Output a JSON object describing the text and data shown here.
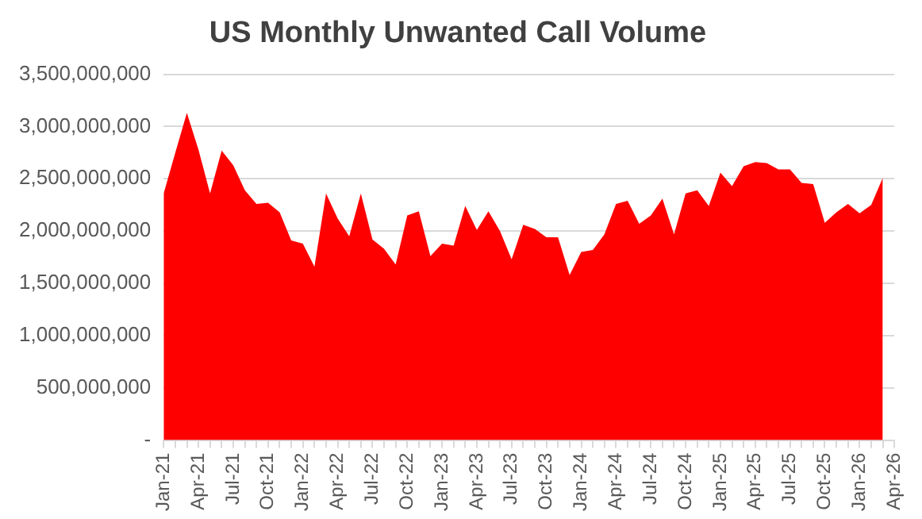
{
  "chart_data": {
    "type": "area",
    "title": "US Monthly Unwanted Call Volume",
    "categories": [
      "Jan-21",
      null,
      null,
      "Apr-21",
      null,
      null,
      "Jul-21",
      null,
      null,
      "Oct-21",
      null,
      null,
      "Jan-22",
      null,
      null,
      "Apr-22",
      null,
      null,
      "Jul-22",
      null,
      null,
      "Oct-22",
      null,
      null,
      "Jan-23",
      null,
      null,
      "Apr-23",
      null,
      null,
      "Jul-23",
      null,
      null,
      "Oct-23",
      null,
      null,
      "Jan-24",
      null,
      null,
      "Apr-24",
      null,
      null,
      "Jul-24",
      null,
      null,
      "Oct-24",
      null,
      null,
      "Jan-25",
      null,
      null,
      "Apr-25",
      null,
      null,
      "Jul-25",
      null,
      null,
      "Oct-25",
      null,
      null,
      "Jan-26",
      null,
      null,
      "Apr-26"
    ],
    "series": [
      {
        "color": "#ff0000",
        "values": [
          2360000000,
          2750000000,
          3130000000,
          2780000000,
          2360000000,
          2770000000,
          2630000000,
          2390000000,
          2260000000,
          2270000000,
          2180000000,
          1910000000,
          1880000000,
          1660000000,
          2360000000,
          2120000000,
          1950000000,
          2360000000,
          1920000000,
          1830000000,
          1680000000,
          2150000000,
          2190000000,
          1760000000,
          1880000000,
          1860000000,
          2240000000,
          2010000000,
          2190000000,
          2000000000,
          1730000000,
          2060000000,
          2020000000,
          1940000000,
          1940000000,
          1580000000,
          1800000000,
          1820000000,
          1970000000,
          2260000000,
          2290000000,
          2070000000,
          2150000000,
          2310000000,
          1970000000,
          2360000000,
          2390000000,
          2240000000,
          2560000000,
          2430000000,
          2620000000,
          2660000000,
          2650000000,
          2590000000,
          2590000000,
          2460000000,
          2450000000,
          2080000000,
          2180000000,
          2260000000,
          2170000000,
          2250000000,
          2510000000,
          null
        ]
      }
    ],
    "ylim": [
      0,
      3500000000
    ],
    "yticks": [
      {
        "value": 0,
        "label": "-"
      },
      {
        "value": 500000000,
        "label": "500,000,000"
      },
      {
        "value": 1000000000,
        "label": "1,000,000,000"
      },
      {
        "value": 1500000000,
        "label": "1,500,000,000"
      },
      {
        "value": 2000000000,
        "label": "2,000,000,000"
      },
      {
        "value": 2500000000,
        "label": "2,500,000,000"
      },
      {
        "value": 3000000000,
        "label": "3,000,000,000"
      },
      {
        "value": 3500000000,
        "label": "3,500,000,000"
      }
    ],
    "grid": "y"
  }
}
